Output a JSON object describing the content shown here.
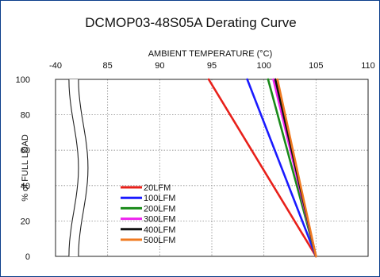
{
  "chart_data": {
    "type": "line",
    "title": "DCMOP03-48S05A Derating Curve",
    "xlabel": "AMBIENT TEMPERATURE (°C)",
    "ylabel": "% of FULL LOAD",
    "x_ticks": [
      "-40",
      "85",
      "90",
      "95",
      "100",
      "105",
      "110"
    ],
    "x_tick_values": [
      80,
      85,
      90,
      95,
      100,
      105,
      110
    ],
    "axis_break": "-40 to 85",
    "xlim": [
      80,
      110
    ],
    "ylim": [
      0,
      100
    ],
    "y_ticks": [
      "0",
      "20",
      "40",
      "60",
      "80",
      "100"
    ],
    "grid": true,
    "legend_position": "lower-left",
    "series": [
      {
        "name": "20LFM",
        "color": "#e8201a",
        "points": [
          [
            94.7,
            100
          ],
          [
            105,
            0
          ]
        ]
      },
      {
        "name": "100LFM",
        "color": "#1a1aff",
        "points": [
          [
            98.4,
            100
          ],
          [
            105,
            0
          ]
        ]
      },
      {
        "name": "200LFM",
        "color": "#1a8a1a",
        "points": [
          [
            100.4,
            100
          ],
          [
            105,
            0
          ]
        ]
      },
      {
        "name": "300LFM",
        "color": "#ee22ee",
        "points": [
          [
            100.9,
            100
          ],
          [
            105,
            0
          ]
        ]
      },
      {
        "name": "400LFM",
        "color": "#111111",
        "points": [
          [
            101.1,
            100
          ],
          [
            105,
            0
          ]
        ]
      },
      {
        "name": "500LFM",
        "color": "#f07a20",
        "points": [
          [
            101.3,
            100
          ],
          [
            105,
            0
          ]
        ]
      }
    ]
  }
}
